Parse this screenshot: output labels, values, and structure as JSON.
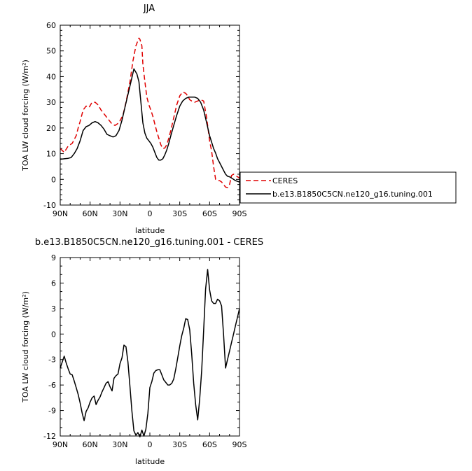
{
  "chart_data": [
    {
      "type": "line",
      "title": "JJA",
      "xlabel": "latitude",
      "ylabel": "TOA LW cloud forcing (W/m²)",
      "ylim": [
        -10,
        60
      ],
      "yticks": [
        "-10",
        "0",
        "10",
        "20",
        "30",
        "40",
        "50",
        "60"
      ],
      "xlim": [
        90,
        -90
      ],
      "xticks": [
        "90N",
        "60N",
        "30N",
        "0",
        "30S",
        "60S",
        "90S"
      ],
      "legend_position": "right",
      "series": [
        {
          "name": "CERES",
          "color": "#e00000",
          "dash": "dashed",
          "x": [
            90,
            86,
            82,
            78,
            74,
            72,
            70,
            67,
            64,
            61,
            58,
            55,
            52,
            49,
            45,
            41,
            38,
            35,
            31,
            27,
            24,
            20,
            17,
            14,
            11,
            10,
            8,
            7,
            5,
            3,
            1,
            -1,
            -3,
            -5,
            -7,
            -9,
            -11,
            -13,
            -15,
            -17,
            -19,
            -21,
            -24,
            -27,
            -30,
            -33,
            -36,
            -38,
            -40,
            -42,
            -45,
            -48,
            -51,
            -54,
            -57,
            -60,
            -62,
            -64,
            -66,
            -68,
            -70,
            -72,
            -74,
            -76,
            -78,
            -80,
            -82,
            -84,
            -86,
            -88,
            -90
          ],
          "y": [
            12,
            10.5,
            13,
            14,
            17,
            20,
            22.5,
            27,
            28.5,
            28,
            30,
            30,
            29,
            27,
            25,
            23,
            21.5,
            21,
            22,
            25,
            30,
            38,
            46,
            52,
            55,
            54.5,
            52,
            45,
            38,
            32,
            29,
            27,
            24.5,
            21.5,
            18.5,
            16,
            13.5,
            12,
            12.2,
            13.5,
            16,
            19,
            24,
            29,
            32.5,
            34,
            33.5,
            32.5,
            31,
            30.5,
            30,
            30.5,
            31,
            30.5,
            24,
            15,
            11,
            5,
            0,
            -0.5,
            -0.5,
            -1,
            -2,
            -3,
            -3.2,
            -2,
            1.5,
            2,
            1.5,
            1,
            0.5
          ]
        },
        {
          "name": "b.e13.B1850C5CN.ne120_g16.tuning.001",
          "color": "#000000",
          "dash": "solid",
          "x": [
            90,
            86,
            82,
            79,
            76,
            73,
            70,
            67,
            64,
            61,
            58,
            55,
            52,
            49,
            46,
            43,
            40,
            37,
            34,
            31,
            28,
            25,
            22,
            19,
            16,
            13,
            11,
            10,
            9,
            8,
            7,
            5,
            3,
            1,
            -1,
            -3,
            -5,
            -7,
            -9,
            -11,
            -13,
            -15,
            -17,
            -19,
            -21,
            -24,
            -27,
            -30,
            -33,
            -36,
            -39,
            -42,
            -45,
            -48,
            -51,
            -54,
            -57,
            -60,
            -62,
            -64,
            -66,
            -68,
            -70,
            -72,
            -74,
            -76,
            -78,
            -80,
            -82,
            -84,
            -86,
            -88,
            -90
          ],
          "y": [
            7.8,
            8,
            8.2,
            8.5,
            10,
            12,
            15,
            19,
            20.5,
            21,
            22,
            22.5,
            22,
            21,
            19.5,
            17.5,
            17,
            16.5,
            17,
            19,
            23,
            28,
            33,
            38,
            43,
            41,
            38,
            34,
            30,
            26,
            22,
            18,
            16,
            15,
            14,
            12.5,
            10.5,
            8.5,
            7.5,
            7.5,
            8,
            9.5,
            11.5,
            14,
            17,
            21,
            25,
            28.5,
            30.5,
            31.5,
            32,
            32,
            32,
            31.5,
            30,
            27,
            22,
            17,
            14.5,
            12,
            10.2,
            8,
            6.5,
            5,
            3.5,
            2,
            1.2,
            1,
            0.5,
            0,
            -0.5,
            -0.8,
            -1
          ]
        }
      ]
    },
    {
      "type": "line",
      "title": "b.e13.B1850C5CN.ne120_g16.tuning.001 - CERES",
      "xlabel": "latitude",
      "ylabel": "TOA LW cloud forcing (W/m²)",
      "ylim": [
        -12,
        9
      ],
      "yticks": [
        "-12",
        "-9",
        "-6",
        "-3",
        "0",
        "3",
        "6",
        "9"
      ],
      "xlim": [
        90,
        -90
      ],
      "xticks": [
        "90N",
        "60N",
        "30N",
        "0",
        "30S",
        "60S",
        "90S"
      ],
      "series": [
        {
          "color": "#000000",
          "dash": "solid",
          "x": [
            90,
            88,
            86,
            84,
            82,
            80,
            78,
            76,
            74,
            72,
            70,
            68,
            66,
            64,
            62,
            60,
            58,
            56,
            54,
            52,
            50,
            48,
            46,
            44,
            42,
            40,
            38,
            36,
            34,
            32,
            30,
            28,
            26,
            24,
            22,
            20,
            18,
            16,
            14,
            12,
            10,
            8,
            6,
            4,
            2,
            0,
            -2,
            -4,
            -6,
            -8,
            -10,
            -12,
            -14,
            -16,
            -18,
            -20,
            -22,
            -24,
            -26,
            -28,
            -30,
            -32,
            -34,
            -36,
            -38,
            -40,
            -42,
            -44,
            -46,
            -48,
            -50,
            -52,
            -54,
            -56,
            -58,
            -60,
            -62,
            -64,
            -66,
            -68,
            -70,
            -72,
            -74,
            -76,
            -78,
            -80,
            -82,
            -84,
            -86,
            -88,
            -90
          ],
          "y": [
            -4,
            -3.3,
            -2.6,
            -3.4,
            -4.1,
            -4.7,
            -4.8,
            -5.5,
            -6.3,
            -7.1,
            -8.1,
            -9.3,
            -10.2,
            -9.1,
            -8.7,
            -8,
            -7.5,
            -7.3,
            -8.3,
            -7.8,
            -7.4,
            -6.8,
            -6.3,
            -5.8,
            -5.6,
            -6.2,
            -6.7,
            -5.2,
            -4.9,
            -4.7,
            -3.5,
            -2.8,
            -1.3,
            -1.5,
            -3.3,
            -6.2,
            -9.1,
            -11.4,
            -11.9,
            -11.6,
            -12.1,
            -11.3,
            -12,
            -11.2,
            -9.3,
            -6.3,
            -5.6,
            -4.6,
            -4.3,
            -4.2,
            -4.2,
            -4.8,
            -5.4,
            -5.7,
            -6,
            -6,
            -5.8,
            -5.3,
            -4.1,
            -2.8,
            -1.4,
            -0.2,
            0.7,
            1.8,
            1.7,
            0.5,
            -2.3,
            -5.8,
            -8.3,
            -10.1,
            -7.7,
            -4.3,
            0.4,
            5.3,
            7.6,
            5.2,
            3.9,
            3.6,
            3.6,
            4.1,
            3.9,
            3.3,
            0,
            -4,
            -3,
            -2,
            -1,
            0,
            1,
            2,
            3
          ]
        }
      ]
    }
  ]
}
